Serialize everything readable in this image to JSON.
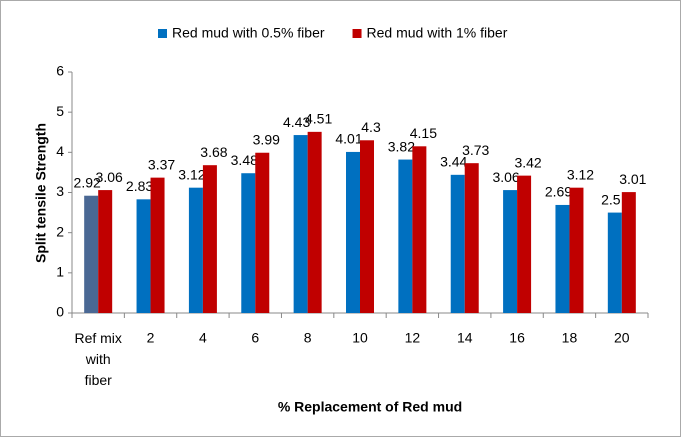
{
  "chart_data": {
    "type": "bar",
    "x_label": "% Replacement of Red mud",
    "y_label": "Split tensile Strength",
    "categories": [
      "Ref mix with fiber",
      "2",
      "4",
      "6",
      "8",
      "10",
      "12",
      "14",
      "16",
      "18",
      "20"
    ],
    "series": [
      {
        "name": "Red mud with 0.5% fiber",
        "color": "#0070c0",
        "colors": [
          "#4a6894",
          "#0070c0",
          "#0070c0",
          "#0070c0",
          "#0070c0",
          "#0070c0",
          "#0070c0",
          "#0070c0",
          "#0070c0",
          "#0070c0",
          "#0070c0"
        ],
        "values": [
          2.92,
          2.83,
          3.12,
          3.48,
          4.43,
          4.01,
          3.82,
          3.44,
          3.06,
          2.69,
          2.5
        ]
      },
      {
        "name": "Red mud with 1% fiber",
        "color": "#c00000",
        "values": [
          3.06,
          3.37,
          3.68,
          3.99,
          4.51,
          4.3,
          4.15,
          3.73,
          3.42,
          3.12,
          3.01
        ]
      }
    ],
    "ylim": [
      0,
      6
    ],
    "yticks": [
      0,
      1,
      2,
      3,
      4,
      5,
      6
    ],
    "grid": false,
    "legend": "top"
  }
}
